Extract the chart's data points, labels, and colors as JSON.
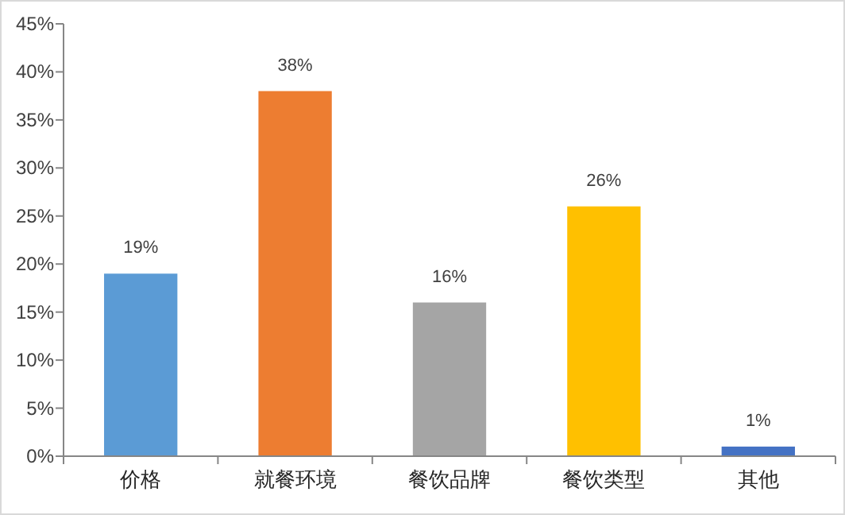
{
  "chart_data": {
    "type": "bar",
    "categories": [
      "价格",
      "就餐环境",
      "餐饮品牌",
      "餐饮类型",
      "其他"
    ],
    "values": [
      19,
      38,
      16,
      26,
      1
    ],
    "colors": [
      "#5b9bd5",
      "#ed7d31",
      "#a5a5a5",
      "#ffc000",
      "#4472c4"
    ],
    "value_labels": [
      "19%",
      "38%",
      "16%",
      "26%",
      "1%"
    ],
    "ylim": [
      0,
      45
    ],
    "yticks": [
      {
        "value": 0,
        "label": "0%"
      },
      {
        "value": 5,
        "label": "5%"
      },
      {
        "value": 10,
        "label": "10%"
      },
      {
        "value": 15,
        "label": "15%"
      },
      {
        "value": 20,
        "label": "20%"
      },
      {
        "value": 25,
        "label": "25%"
      },
      {
        "value": 30,
        "label": "30%"
      },
      {
        "value": 35,
        "label": "35%"
      },
      {
        "value": 40,
        "label": "40%"
      },
      {
        "value": 45,
        "label": "45%"
      }
    ],
    "grid": false
  }
}
